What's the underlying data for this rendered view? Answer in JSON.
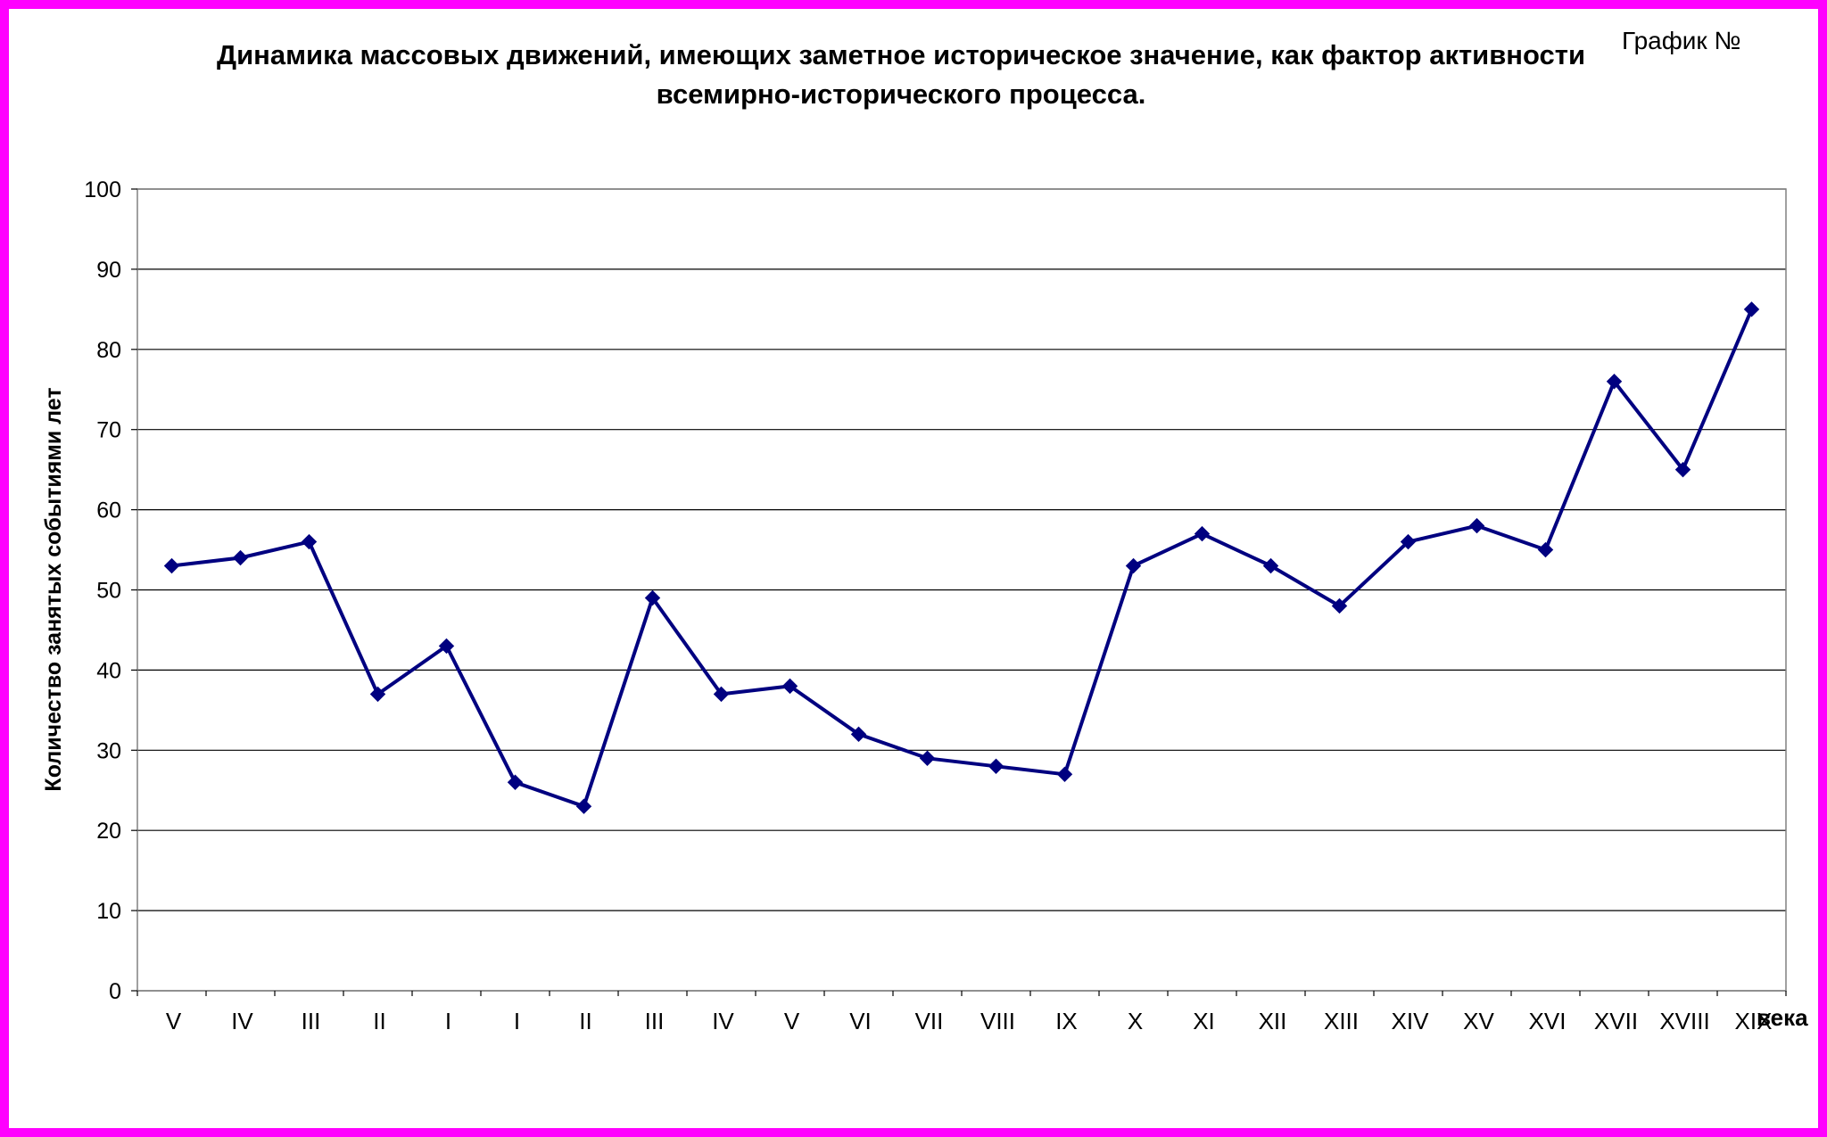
{
  "chart_number_label": "График №",
  "colors": {
    "border": "#ff00ff",
    "background": "#ffffff",
    "series": "#000080",
    "grid": "#000000"
  },
  "chart_data": {
    "type": "line",
    "title": "Динамика массовых движений, имеющих заметное историческое значение, как фактор активности всемирно-исторического процесса.",
    "xlabel": "века",
    "ylabel": "Количество занятых событиями лет",
    "ylim": [
      0,
      100
    ],
    "yticks": [
      0,
      10,
      20,
      30,
      40,
      50,
      60,
      70,
      80,
      90,
      100
    ],
    "grid": true,
    "legend": "none",
    "categories": [
      "V",
      "IV",
      "III",
      "II",
      "I",
      "I",
      "II",
      "III",
      "IV",
      "V",
      "VI",
      "VII",
      "VIII",
      "IX",
      "X",
      "XI",
      "XII",
      "XIII",
      "XIV",
      "XV",
      "XVI",
      "XVII",
      "XVIII",
      "XIX"
    ],
    "series": [
      {
        "values": [
          53,
          54,
          56,
          37,
          43,
          26,
          23,
          49,
          37,
          38,
          32,
          29,
          28,
          27,
          53,
          57,
          53,
          48,
          56,
          58,
          55,
          76,
          65,
          85
        ]
      }
    ]
  }
}
